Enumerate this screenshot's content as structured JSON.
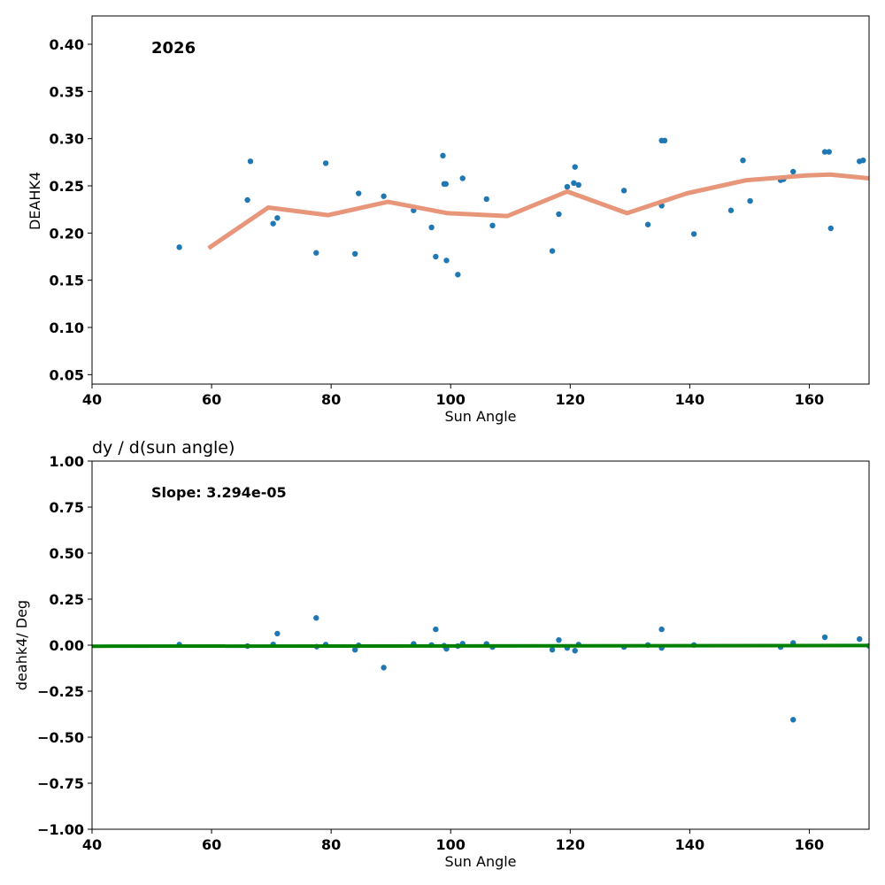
{
  "chart_data": [
    {
      "type": "scatter",
      "title": "",
      "annotation": "2026",
      "xlabel": "Sun Angle",
      "ylabel": "DEAHK4",
      "xlim": [
        40,
        170
      ],
      "ylim": [
        0.04,
        0.43
      ],
      "xticks": [
        "40",
        "60",
        "80",
        "100",
        "120",
        "140",
        "160"
      ],
      "yticks": [
        "0.05",
        "0.10",
        "0.15",
        "0.20",
        "0.25",
        "0.30",
        "0.35",
        "0.40"
      ],
      "point_color": "#1f77b4",
      "trend_color": "#e8967a",
      "points": [
        [
          54.6,
          0.185
        ],
        [
          66,
          0.235
        ],
        [
          66.5,
          0.276
        ],
        [
          70.3,
          0.21
        ],
        [
          71,
          0.216
        ],
        [
          77.5,
          0.179
        ],
        [
          79.1,
          0.274
        ],
        [
          84,
          0.178
        ],
        [
          84.6,
          0.242
        ],
        [
          88.8,
          0.239
        ],
        [
          93.8,
          0.224
        ],
        [
          96.8,
          0.206
        ],
        [
          97.5,
          0.175
        ],
        [
          98.7,
          0.282
        ],
        [
          98.9,
          0.252
        ],
        [
          99.2,
          0.252
        ],
        [
          99.3,
          0.171
        ],
        [
          101.2,
          0.156
        ],
        [
          102,
          0.258
        ],
        [
          106,
          0.236
        ],
        [
          107,
          0.208
        ],
        [
          117,
          0.181
        ],
        [
          118.1,
          0.22
        ],
        [
          119.5,
          0.249
        ],
        [
          120.6,
          0.253
        ],
        [
          120.8,
          0.27
        ],
        [
          121.4,
          0.251
        ],
        [
          129,
          0.245
        ],
        [
          133,
          0.209
        ],
        [
          135.3,
          0.229
        ],
        [
          135.3,
          0.298
        ],
        [
          135.8,
          0.298
        ],
        [
          140.7,
          0.199
        ],
        [
          146.9,
          0.224
        ],
        [
          148.9,
          0.277
        ],
        [
          150.1,
          0.234
        ],
        [
          155.2,
          0.256
        ],
        [
          155.7,
          0.257
        ],
        [
          157.3,
          0.265
        ],
        [
          162.6,
          0.286
        ],
        [
          163.3,
          0.286
        ],
        [
          163.6,
          0.205
        ],
        [
          168.4,
          0.276
        ],
        [
          169,
          0.277
        ]
      ],
      "trend": [
        [
          59.5,
          0.184
        ],
        [
          69.5,
          0.227
        ],
        [
          79.5,
          0.219
        ],
        [
          89.5,
          0.233
        ],
        [
          99.5,
          0.221
        ],
        [
          109.5,
          0.218
        ],
        [
          119.5,
          0.244
        ],
        [
          129.5,
          0.221
        ],
        [
          139.5,
          0.242
        ],
        [
          149.5,
          0.256
        ],
        [
          159.5,
          0.261
        ],
        [
          163.5,
          0.262
        ],
        [
          170,
          0.258
        ]
      ]
    },
    {
      "type": "scatter",
      "title": "dy / d(sun angle)",
      "annotation": "Slope: 3.294e-05",
      "xlabel": "Sun Angle",
      "ylabel": "deahk4/ Deg",
      "xlim": [
        40,
        170
      ],
      "ylim": [
        -1.0,
        1.0
      ],
      "xticks": [
        "40",
        "60",
        "80",
        "100",
        "120",
        "140",
        "160"
      ],
      "yticks": [
        "−1.00",
        "−0.75",
        "−0.50",
        "−0.25",
        "0.00",
        "0.25",
        "0.50",
        "0.75",
        "1.00"
      ],
      "point_color": "#1f77b4",
      "fit_color": "#008000",
      "points": [
        [
          54.6,
          0.003
        ],
        [
          66,
          -0.005
        ],
        [
          70.3,
          0.004
        ],
        [
          71,
          0.063
        ],
        [
          77.5,
          0.148
        ],
        [
          77.6,
          -0.008
        ],
        [
          79.1,
          0.003
        ],
        [
          84,
          -0.025
        ],
        [
          84.6,
          -0.001
        ],
        [
          88.8,
          -0.122
        ],
        [
          93.8,
          0.007
        ],
        [
          96.8,
          0.001
        ],
        [
          97.5,
          0.086
        ],
        [
          98.9,
          -0.003
        ],
        [
          99.3,
          -0.02
        ],
        [
          101.2,
          -0.005
        ],
        [
          102,
          0.008
        ],
        [
          106,
          0.007
        ],
        [
          107,
          -0.01
        ],
        [
          117,
          -0.025
        ],
        [
          118.1,
          0.028
        ],
        [
          119.5,
          -0.015
        ],
        [
          120.8,
          -0.03
        ],
        [
          121.4,
          0.003
        ],
        [
          129,
          -0.01
        ],
        [
          133,
          0.001
        ],
        [
          135.3,
          0.086
        ],
        [
          135.3,
          -0.015
        ],
        [
          140.7,
          0.001
        ],
        [
          155.2,
          -0.01
        ],
        [
          157.3,
          0.012
        ],
        [
          157.3,
          -0.405
        ],
        [
          162.6,
          0.043
        ],
        [
          168.4,
          0.033
        ],
        [
          170,
          -0.004
        ]
      ],
      "fit": [
        [
          40,
          -0.006
        ],
        [
          170,
          -0.002
        ]
      ]
    }
  ]
}
